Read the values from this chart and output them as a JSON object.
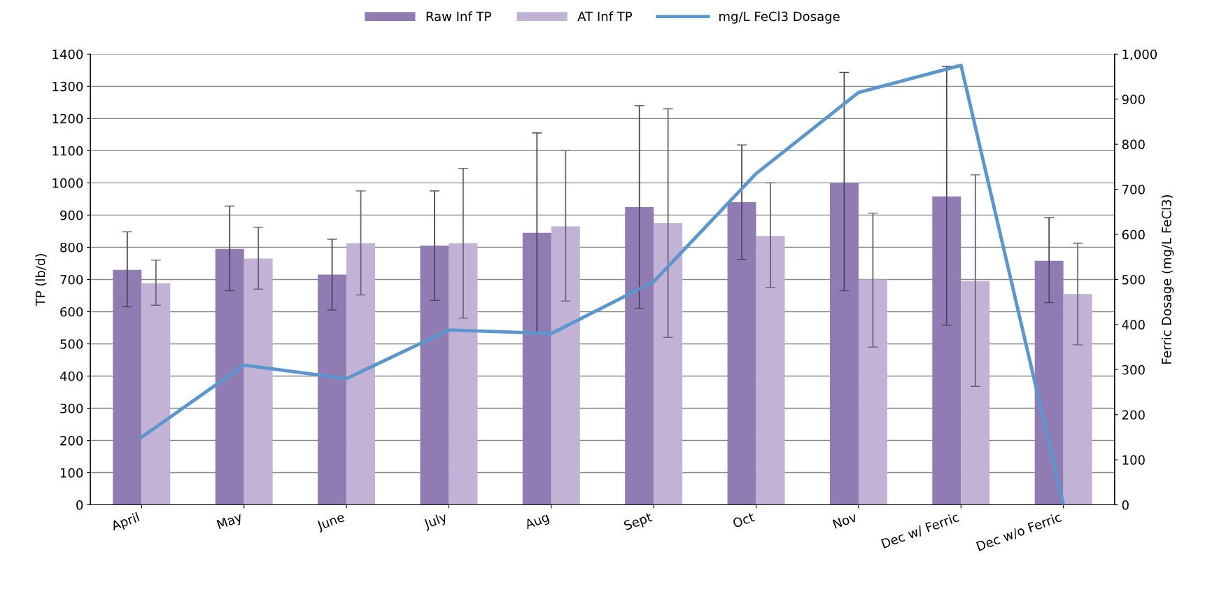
{
  "chart_data": {
    "type": "bar",
    "categories": [
      "April",
      "May",
      "June",
      "July",
      "Aug",
      "Sept",
      "Oct",
      "Nov",
      "Dec w/ Ferric",
      "Dec w/o Ferric"
    ],
    "ylabel": "TP (lb/d)",
    "y2label": "Ferric Dosage (mg/L FeCl3)",
    "series": [
      {
        "name": "Raw Inf TP",
        "color": "#917bb3",
        "values": [
          730,
          795,
          715,
          805,
          845,
          925,
          940,
          1000,
          958,
          758
        ],
        "errors": [
          [
            615,
            848
          ],
          [
            665,
            928
          ],
          [
            605,
            825
          ],
          [
            635,
            975
          ],
          [
            535,
            1155
          ],
          [
            610,
            1240
          ],
          [
            762,
            1118
          ],
          [
            665,
            1343
          ],
          [
            558,
            1362
          ],
          [
            628,
            892
          ]
        ]
      },
      {
        "name": "AT Inf TP",
        "color": "#c2b3d6",
        "values": [
          688,
          765,
          813,
          813,
          865,
          875,
          835,
          700,
          695,
          655
        ],
        "errors": [
          [
            620,
            760
          ],
          [
            670,
            862
          ],
          [
            652,
            975
          ],
          [
            580,
            1045
          ],
          [
            633,
            1100
          ],
          [
            520,
            1230
          ],
          [
            675,
            1000
          ],
          [
            490,
            906
          ],
          [
            368,
            1025
          ],
          [
            497,
            813
          ]
        ]
      },
      {
        "name": "mg/L FeCl3 Dosage",
        "type": "line",
        "axis": "y2",
        "color": "#5b96cc",
        "values": [
          150,
          310,
          280,
          388,
          380,
          495,
          735,
          915,
          975,
          0
        ]
      }
    ],
    "ylim": [
      0,
      1400
    ],
    "yticks": [
      0,
      100,
      200,
      300,
      400,
      500,
      600,
      700,
      800,
      900,
      1000,
      1100,
      1200,
      1300,
      1400
    ],
    "y2lim": [
      0,
      1000
    ],
    "y2ticks": [
      0,
      100,
      200,
      300,
      400,
      500,
      600,
      700,
      800,
      900,
      {
        "value": 1000,
        "label": "1,000"
      }
    ],
    "grid": "y",
    "legend": "top",
    "marker": "none",
    "line_style": "solid"
  }
}
